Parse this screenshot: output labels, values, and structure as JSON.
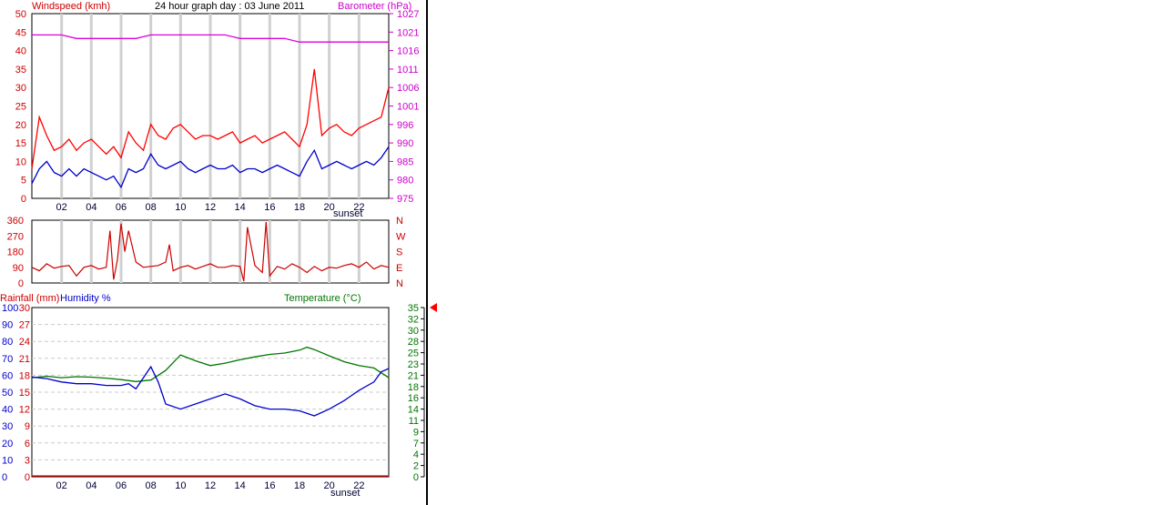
{
  "chart_data": [
    {
      "type": "line",
      "title": "24 hour graph day : 03 June 2011",
      "left_axis_label": "Windspeed (kmh)",
      "right_axis_label": "Barometer (hPa)",
      "y_left_ticks": [
        "0",
        "5",
        "10",
        "15",
        "20",
        "25",
        "30",
        "35",
        "40",
        "45",
        "50"
      ],
      "y_right_ticks": [
        "975",
        "980",
        "985",
        "990",
        "996",
        "1001",
        "1006",
        "1011",
        "1016",
        "1021",
        "1027"
      ],
      "ylim_left": [
        0,
        50
      ],
      "ylim_right": [
        975,
        1027
      ],
      "x_ticks": [
        "02",
        "04",
        "06",
        "08",
        "10",
        "12",
        "14",
        "16",
        "18",
        "20",
        "22"
      ],
      "x_range_hours": [
        0,
        24
      ],
      "annotation": "sunset",
      "annotation_hour": 19,
      "series": [
        {
          "color": "#ff0000",
          "axis": "left",
          "x": [
            0,
            0.5,
            1,
            1.5,
            2,
            2.5,
            3,
            3.5,
            4,
            4.5,
            5,
            5.5,
            6,
            6.5,
            7,
            7.5,
            8,
            8.5,
            9,
            9.5,
            10,
            10.5,
            11,
            11.5,
            12,
            12.5,
            13,
            13.5,
            14,
            14.5,
            15,
            15.5,
            16,
            16.5,
            17,
            17.5,
            18,
            18.5,
            19,
            19.5,
            20,
            20.5,
            21,
            21.5,
            22,
            22.5,
            23,
            23.5,
            24
          ],
          "y": [
            8,
            22,
            17,
            13,
            14,
            16,
            13,
            15,
            16,
            14,
            12,
            14,
            11,
            18,
            15,
            13,
            20,
            17,
            16,
            19,
            20,
            18,
            16,
            17,
            17,
            16,
            17,
            18,
            15,
            16,
            17,
            15,
            16,
            17,
            18,
            16,
            14,
            20,
            35,
            17,
            19,
            20,
            18,
            17,
            19,
            20,
            21,
            22,
            30
          ]
        },
        {
          "color": "#0000cc",
          "axis": "left",
          "x": [
            0,
            0.5,
            1,
            1.5,
            2,
            2.5,
            3,
            3.5,
            4,
            4.5,
            5,
            5.5,
            6,
            6.5,
            7,
            7.5,
            8,
            8.5,
            9,
            9.5,
            10,
            10.5,
            11,
            11.5,
            12,
            12.5,
            13,
            13.5,
            14,
            14.5,
            15,
            15.5,
            16,
            16.5,
            17,
            17.5,
            18,
            18.5,
            19,
            19.5,
            20,
            20.5,
            21,
            21.5,
            22,
            22.5,
            23,
            23.5,
            24
          ],
          "y": [
            4,
            8,
            10,
            7,
            6,
            8,
            6,
            8,
            7,
            6,
            5,
            6,
            3,
            8,
            7,
            8,
            12,
            9,
            8,
            9,
            10,
            8,
            7,
            8,
            9,
            8,
            8,
            9,
            7,
            8,
            8,
            7,
            8,
            9,
            8,
            7,
            6,
            10,
            13,
            8,
            9,
            10,
            9,
            8,
            9,
            10,
            9,
            11,
            14
          ]
        },
        {
          "color": "#dd00dd",
          "axis": "right",
          "x": [
            0,
            1,
            2,
            3,
            4,
            5,
            6,
            7,
            8,
            9,
            10,
            11,
            12,
            13,
            14,
            15,
            16,
            17,
            18,
            19,
            20,
            21,
            22,
            23,
            24
          ],
          "y": [
            1021,
            1021,
            1021,
            1020,
            1020,
            1020,
            1020,
            1020,
            1021,
            1021,
            1021,
            1021,
            1021,
            1021,
            1020,
            1020,
            1020,
            1020,
            1019,
            1019,
            1019,
            1019,
            1019,
            1019,
            1019
          ]
        }
      ]
    },
    {
      "type": "line",
      "y_left_ticks": [
        "0",
        "90",
        "180",
        "270",
        "360"
      ],
      "y_right_ticks": [
        "N",
        "E",
        "S",
        "W",
        "N"
      ],
      "ylim": [
        0,
        360
      ],
      "x_range_hours": [
        0,
        24
      ],
      "series": [
        {
          "color": "#cc0000",
          "x": [
            0,
            0.5,
            1,
            1.5,
            2,
            2.5,
            3,
            3.5,
            4,
            4.5,
            5,
            5.25,
            5.5,
            5.75,
            6,
            6.25,
            6.5,
            7,
            7.5,
            8,
            8.5,
            9,
            9.25,
            9.5,
            10,
            10.5,
            11,
            11.5,
            12,
            12.5,
            13,
            13.5,
            14,
            14.25,
            14.5,
            15,
            15.5,
            15.75,
            16,
            16.5,
            17,
            17.5,
            18,
            18.5,
            19,
            19.5,
            20,
            20.5,
            21,
            21.5,
            22,
            22.5,
            23,
            23.5,
            24
          ],
          "y": [
            90,
            70,
            110,
            85,
            95,
            100,
            40,
            90,
            100,
            80,
            90,
            300,
            20,
            130,
            340,
            180,
            300,
            120,
            90,
            95,
            100,
            120,
            220,
            70,
            90,
            100,
            80,
            95,
            110,
            90,
            90,
            100,
            95,
            10,
            320,
            100,
            60,
            350,
            40,
            95,
            80,
            110,
            90,
            60,
            95,
            70,
            90,
            85,
            100,
            110,
            90,
            120,
            80,
            100,
            90
          ]
        }
      ]
    },
    {
      "type": "line",
      "left_axis_label_1": "Rainfall (mm)",
      "left_axis_label_2": "Humidity %",
      "right_axis_label": "Temperature (°C)",
      "rain_ticks": [
        "0",
        "3",
        "6",
        "9",
        "12",
        "15",
        "18",
        "21",
        "24",
        "27",
        "30"
      ],
      "humidity_ticks": [
        "0",
        "10",
        "20",
        "30",
        "40",
        "50",
        "60",
        "70",
        "80",
        "90",
        "100"
      ],
      "temp_ticks": [
        "0",
        "2",
        "4",
        "7",
        "9",
        "11",
        "14",
        "16",
        "18",
        "21",
        "23",
        "25",
        "28",
        "30",
        "32",
        "35"
      ],
      "ylim_humidity": [
        0,
        100
      ],
      "ylim_temp": [
        0,
        35
      ],
      "ylim_rain": [
        0,
        30
      ],
      "x_ticks": [
        "02",
        "04",
        "06",
        "08",
        "10",
        "12",
        "14",
        "16",
        "18",
        "20",
        "22"
      ],
      "x_range_hours": [
        0,
        24
      ],
      "annotation": "sunset",
      "annotation_hour": 19,
      "marker_value": 35,
      "series": [
        {
          "color": "#007700",
          "axis": "temp",
          "x": [
            0,
            1,
            2,
            3,
            4,
            5,
            6,
            7,
            8,
            9,
            10,
            11,
            12,
            13,
            14,
            15,
            16,
            17,
            18,
            18.5,
            19,
            20,
            21,
            22,
            23,
            24
          ],
          "y": [
            20.5,
            20.8,
            20.5,
            20.7,
            20.6,
            20.4,
            20.1,
            19.7,
            20.0,
            22.0,
            25.2,
            24.0,
            23.0,
            23.5,
            24.2,
            24.8,
            25.3,
            25.6,
            26.2,
            26.8,
            26.3,
            25.0,
            23.8,
            23.0,
            22.5,
            20.5
          ]
        },
        {
          "color": "#0000cc",
          "axis": "humidity",
          "x": [
            0,
            1,
            2,
            3,
            4,
            5,
            6,
            6.5,
            7,
            8,
            8.5,
            9,
            10,
            11,
            12,
            13,
            14,
            15,
            16,
            17,
            18,
            19,
            20,
            21,
            22,
            23,
            23.5,
            24
          ],
          "y": [
            59,
            58,
            56,
            55,
            55,
            54,
            54,
            55,
            52,
            65,
            56,
            43,
            40,
            43,
            46,
            49,
            46,
            42,
            40,
            40,
            39,
            36,
            40,
            45,
            51,
            56,
            62,
            64
          ]
        },
        {
          "color": "#ff0000",
          "axis": "rain",
          "x": [
            0,
            24
          ],
          "y": [
            0,
            0
          ]
        }
      ]
    }
  ]
}
